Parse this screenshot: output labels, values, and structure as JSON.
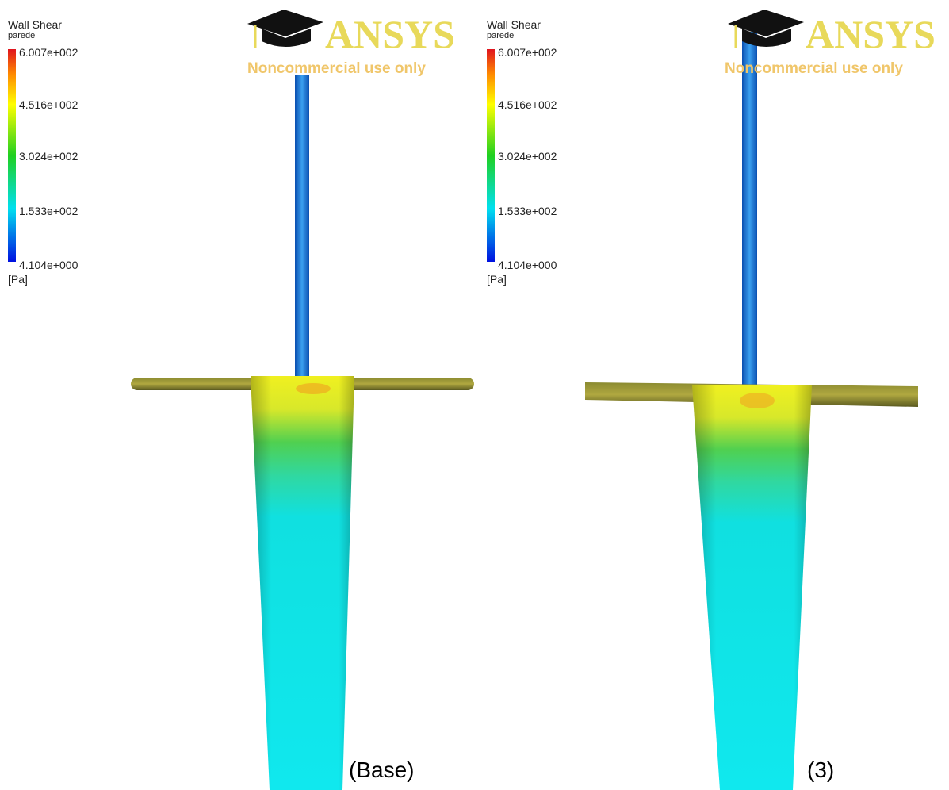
{
  "panels": [
    {
      "legend": {
        "title": "Wall Shear",
        "subtitle": "parede",
        "labels": [
          "6.007e+002",
          "4.516e+002",
          "3.024e+002",
          "1.533e+002",
          "4.104e+000"
        ],
        "unit": "[Pa]"
      },
      "watermark": {
        "brand": "ANSYS",
        "notice": "Noncommercial use only"
      },
      "caption": "(Base)"
    },
    {
      "legend": {
        "title": "Wall Shear",
        "subtitle": "parede",
        "labels": [
          "6.007e+002",
          "4.516e+002",
          "3.024e+002",
          "1.533e+002",
          "4.104e+000"
        ],
        "unit": "[Pa]"
      },
      "watermark": {
        "brand": "ANSYS",
        "notice": "Noncommercial use only"
      },
      "caption": "(3)"
    }
  ]
}
